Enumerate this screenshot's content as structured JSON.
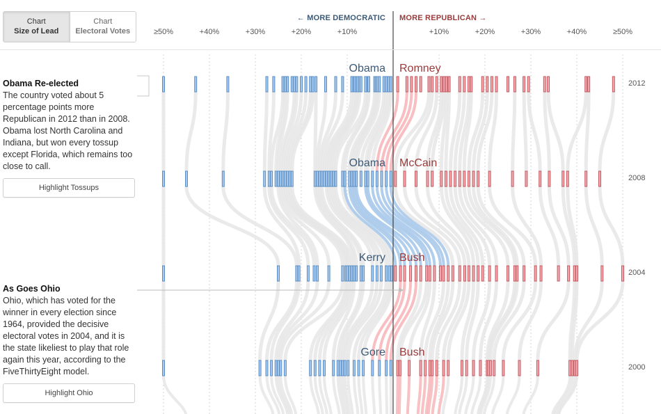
{
  "toggle": {
    "option1_top": "Chart",
    "option1_bottom": "Size of Lead",
    "option2_top": "Chart",
    "option2_bottom": "Electoral Votes"
  },
  "header": {
    "more_democratic": "← MORE DEMOCRATIC",
    "more_republican": "MORE REPUBLICAN →"
  },
  "notes": {
    "reelected_title": "Obama Re-elected",
    "reelected_body": "The country voted about 5 percentage points more Republican in 2012 than in 2008. Obama lost North Carolina and Indiana, but won every tossup except Florida, which remains too close to call.",
    "highlight_tossups": "Highlight Tossups",
    "ohio_title": "As Goes Ohio",
    "ohio_body": "Ohio, which has voted for the winner in every election since 1964, provided the decisive electoral votes in 2004, and it is the state likeliest to play that role again this year, according to the FiveThirtyEight model.",
    "highlight_ohio": "Highlight Ohio"
  },
  "colors": {
    "dem": "#5b8fc6",
    "dem_fill": "#a7c8ea",
    "rep": "#c25a62",
    "rep_fill": "#f3a9ae",
    "flow": "#e6e6e6",
    "dem_flow": "#a9c9ea",
    "rep_flow": "#f7b7bb"
  },
  "chart_data": {
    "type": "strip",
    "x_ticks": [
      "≥50%",
      "+40%",
      "+30%",
      "+20%",
      "+10%",
      "+10%",
      "+20%",
      "+30%",
      "+40%",
      "≥50%"
    ],
    "x_tick_values": [
      -50,
      -40,
      -30,
      -20,
      -10,
      10,
      20,
      30,
      40,
      50
    ],
    "xlim": [
      -50,
      50
    ],
    "years": [
      {
        "year": "2012",
        "dem_candidate": "Obama",
        "rep_candidate": "Romney",
        "dem_margins": [
          -50,
          -43,
          -36,
          -27.5,
          -26,
          -24,
          -23.5,
          -23,
          -22,
          -21.5,
          -21,
          -20,
          -19,
          -18,
          -17.5,
          -16.8,
          -14.7,
          -12.5,
          -11,
          -9,
          -8.4,
          -8,
          -7.7,
          -7.3,
          -7,
          -6,
          -5.5,
          -5.3,
          -4,
          -3.7,
          -3.4,
          -3,
          -2,
          -1.5,
          -1,
          -0.5
        ],
        "rep_margins": [
          1,
          3,
          4,
          5,
          6,
          7.8,
          8.5,
          9.5,
          10.5,
          11.1,
          11.6,
          12.2,
          14.5,
          15.5,
          16.5,
          17,
          19.5,
          20.5,
          21.5,
          22.5,
          25,
          26.5,
          28.5,
          29.5,
          33,
          33.8,
          42,
          42.6,
          48
        ]
      },
      {
        "year": "2008",
        "dem_candidate": "Obama",
        "rep_candidate": "McCain",
        "dem_margins": [
          -50,
          -45,
          -37,
          -28,
          -27,
          -26.5,
          -25.5,
          -25,
          -24.5,
          -24,
          -23.5,
          -23,
          -22.5,
          -22,
          -17,
          -16.5,
          -16,
          -15.5,
          -15,
          -14.5,
          -14,
          -13.5,
          -13,
          -12.5,
          -11,
          -10.5,
          -9.5,
          -9,
          -8.5,
          -8,
          -7,
          -6,
          -5.5,
          -4.5,
          -3.5,
          -2.5,
          -1.5,
          -0.5
        ],
        "rep_margins": [
          0.5,
          2.5,
          5,
          7.5,
          8.5,
          10.5,
          11.5,
          12.5,
          13.5,
          14.5,
          15.5,
          16.5,
          17.5,
          18.5,
          21,
          26,
          29,
          32,
          34,
          37,
          38,
          42,
          45
        ]
      },
      {
        "year": "2004",
        "dem_candidate": "Kerry",
        "rep_candidate": "Bush",
        "dem_margins": [
          -50,
          -25,
          -21,
          -20.5,
          -18.5,
          -17.2,
          -16.5,
          -14,
          -11,
          -10.3,
          -10,
          -9.5,
          -9,
          -8.5,
          -8,
          -7,
          -6.5,
          -4.5,
          -3.5,
          -2.6,
          -1.5,
          -0.8,
          -0.3
        ],
        "rep_margins": [
          0.5,
          1.6,
          2.5,
          3.8,
          5,
          6,
          7.3,
          8,
          9,
          10.3,
          11,
          12,
          13,
          14.5,
          15.6,
          16.5,
          17.5,
          18.5,
          19.5,
          21,
          22.5,
          25,
          26.5,
          27,
          28.5,
          31,
          32.2,
          36,
          38.2,
          39.5,
          40,
          45.5,
          50
        ]
      },
      {
        "year": "2000",
        "dem_candidate": "Gore",
        "rep_candidate": "Bush",
        "dem_margins": [
          -50,
          -29,
          -27.5,
          -26.5,
          -25.5,
          -25,
          -24.5,
          -23.5,
          -18,
          -17,
          -16,
          -15,
          -13,
          -12,
          -11.5,
          -11,
          -10.5,
          -9.8,
          -8.5,
          -7.5,
          -6.5,
          -4.5,
          -3,
          -1.5,
          -0.5
        ],
        "rep_margins": [
          1,
          1.5,
          3.5,
          6,
          7,
          8,
          8.5,
          9.5,
          11,
          12,
          15,
          16,
          17.5,
          19,
          20.5,
          20.8,
          21.2,
          22,
          24,
          27.5,
          31.5,
          38.5,
          39,
          39.6,
          40
        ]
      }
    ]
  }
}
